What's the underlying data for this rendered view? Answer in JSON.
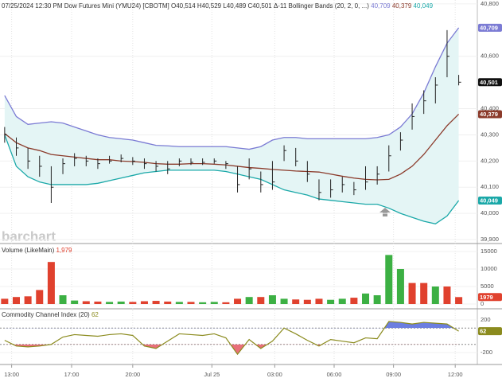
{
  "chart_data": [
    {
      "type": "ohlc",
      "title": "07/25/2024 12:30 PM Dow Futures Mini (YMU24) [CBOTM] O40,514 H40,529 L40,489 C40,501 Δ-11",
      "indicator": "Bollinger Bands (20, 2, 0, ...)",
      "watermark": "barchart",
      "color": "#222222",
      "last_label": "40,501",
      "high": [
        40330,
        40290,
        40250,
        40220,
        40180,
        40210,
        40230,
        40220,
        40210,
        40220,
        40225,
        40215,
        40210,
        40200,
        40200,
        40210,
        40210,
        40210,
        40210,
        40200,
        40180,
        40210,
        40160,
        40200,
        40260,
        40250,
        40200,
        40130,
        40130,
        40140,
        40120,
        40180,
        40180,
        40260,
        40310,
        40420,
        40470,
        40520,
        40700,
        40529
      ],
      "low": [
        40270,
        40220,
        40170,
        40140,
        40040,
        40150,
        40180,
        40180,
        40170,
        40190,
        40195,
        40185,
        40170,
        40160,
        40150,
        40180,
        40185,
        40185,
        40190,
        40170,
        40080,
        40130,
        40080,
        40090,
        40200,
        40180,
        40120,
        40050,
        40060,
        40080,
        40070,
        40090,
        40110,
        40160,
        40240,
        40320,
        40380,
        40420,
        40520,
        40489
      ],
      "close": [
        40300,
        40250,
        40200,
        40180,
        40100,
        40190,
        40210,
        40200,
        40190,
        40200,
        40210,
        40200,
        40190,
        40180,
        40170,
        40200,
        40195,
        40195,
        40200,
        40190,
        40110,
        40170,
        40110,
        40120,
        40240,
        40200,
        40150,
        40080,
        40090,
        40110,
        40090,
        40120,
        40150,
        40220,
        40280,
        40370,
        40430,
        40490,
        40600,
        40501
      ],
      "bands": [
        {
          "color": "#7b7bd4",
          "last_label": "40,709",
          "values": [
            40450,
            40370,
            40340,
            40345,
            40350,
            40345,
            40330,
            40315,
            40300,
            40290,
            40285,
            40280,
            40270,
            40260,
            40258,
            40255,
            40255,
            40255,
            40255,
            40255,
            40250,
            40245,
            40255,
            40280,
            40290,
            40290,
            40285,
            40285,
            40285,
            40285,
            40285,
            40285,
            40290,
            40300,
            40330,
            40380,
            40460,
            40560,
            40650,
            40709
          ]
        },
        {
          "color": "#8b3a2a",
          "last_label": "40,379",
          "values": [
            40305,
            40270,
            40250,
            40240,
            40225,
            40220,
            40215,
            40210,
            40205,
            40205,
            40200,
            40198,
            40195,
            40190,
            40188,
            40188,
            40190,
            40190,
            40188,
            40185,
            40180,
            40175,
            40172,
            40168,
            40165,
            40162,
            40160,
            40158,
            40150,
            40142,
            40135,
            40130,
            40128,
            40130,
            40150,
            40180,
            40225,
            40280,
            40335,
            40379
          ]
        },
        {
          "color": "#1aa8a8",
          "last_label": "40,049",
          "values": [
            40300,
            40180,
            40140,
            40120,
            40110,
            40110,
            40110,
            40110,
            40115,
            40125,
            40135,
            40145,
            40155,
            40160,
            40165,
            40165,
            40165,
            40165,
            40165,
            40160,
            40150,
            40140,
            40130,
            40110,
            40090,
            40080,
            40070,
            40055,
            40050,
            40045,
            40040,
            40035,
            40035,
            40020,
            40000,
            39985,
            39970,
            39960,
            39990,
            40049
          ]
        }
      ],
      "band_fill": "#e4f5f5",
      "xlim": [
        -0.4,
        40.6
      ],
      "xticks": [
        {
          "value": 0.6,
          "label": "13:00"
        },
        {
          "value": 5.75,
          "label": "17:00"
        },
        {
          "value": 11.0,
          "label": "20:00"
        },
        {
          "value": 17.8,
          "label": "Jul 25"
        },
        {
          "value": 23.2,
          "label": "03:00"
        },
        {
          "value": 28.3,
          "label": "06:00"
        },
        {
          "value": 33.4,
          "label": "09:00"
        },
        {
          "value": 38.7,
          "label": "12:00"
        }
      ],
      "ylim": [
        39888,
        40815
      ],
      "yticks": [
        {
          "value": 40800,
          "label": "40,800"
        },
        {
          "value": 40600,
          "label": "40,600"
        },
        {
          "value": 40400,
          "label": "40,400"
        },
        {
          "value": 40300,
          "label": "40,300"
        },
        {
          "value": 40200,
          "label": "40,200"
        },
        {
          "value": 40100,
          "label": "40,100"
        },
        {
          "value": 40000,
          "label": "40,000"
        },
        {
          "value": 39900,
          "label": "39,900"
        }
      ]
    },
    {
      "type": "bar",
      "title": "Volume (LikeMain)",
      "last_label": "1,979",
      "tag_label": "1979",
      "values": [
        1500,
        2000,
        2200,
        4000,
        12000,
        2500,
        1000,
        800,
        700,
        600,
        700,
        600,
        800,
        900,
        700,
        600,
        600,
        500,
        600,
        500,
        1500,
        2000,
        2000,
        2500,
        1500,
        1300,
        1200,
        1500,
        1200,
        1500,
        1800,
        3000,
        2500,
        14000,
        10000,
        6000,
        6000,
        5000,
        5000,
        1979
      ],
      "colors": [
        "#e0412e",
        "#e0412e",
        "#e0412e",
        "#e0412e",
        "#e0412e",
        "#3cb043",
        "#3cb043",
        "#e0412e",
        "#e0412e",
        "#3cb043",
        "#3cb043",
        "#e0412e",
        "#e0412e",
        "#e0412e",
        "#e0412e",
        "#3cb043",
        "#e0412e",
        "#3cb043",
        "#3cb043",
        "#e0412e",
        "#e0412e",
        "#3cb043",
        "#e0412e",
        "#3cb043",
        "#3cb043",
        "#e0412e",
        "#e0412e",
        "#e0412e",
        "#3cb043",
        "#3cb043",
        "#e0412e",
        "#3cb043",
        "#3cb043",
        "#3cb043",
        "#3cb043",
        "#e0412e",
        "#e0412e",
        "#3cb043",
        "#e0412e",
        "#e0412e"
      ],
      "xlim": [
        -0.4,
        40.6
      ],
      "ylim": [
        -680,
        16360
      ],
      "yticks": [
        15000,
        10000,
        5000,
        0
      ]
    },
    {
      "type": "line",
      "title": "Commodity Channel Index (20)",
      "last_label": "62",
      "color": "#8b8b1e",
      "values": [
        -50,
        -120,
        -130,
        -120,
        -100,
        -10,
        20,
        10,
        0,
        20,
        30,
        10,
        -120,
        -150,
        -60,
        30,
        20,
        10,
        30,
        -20,
        -220,
        -40,
        -150,
        -60,
        100,
        30,
        -50,
        -120,
        -40,
        -60,
        -80,
        -20,
        -30,
        180,
        170,
        150,
        170,
        160,
        150,
        62
      ],
      "xlim": [
        -0.4,
        40.6
      ],
      "ylim": [
        -346,
        317
      ],
      "yticks": [
        200,
        -200
      ],
      "ref_lines": [
        100,
        -100
      ],
      "overbought_color": "#6c7ee0",
      "oversold_color": "#e8707a"
    }
  ]
}
